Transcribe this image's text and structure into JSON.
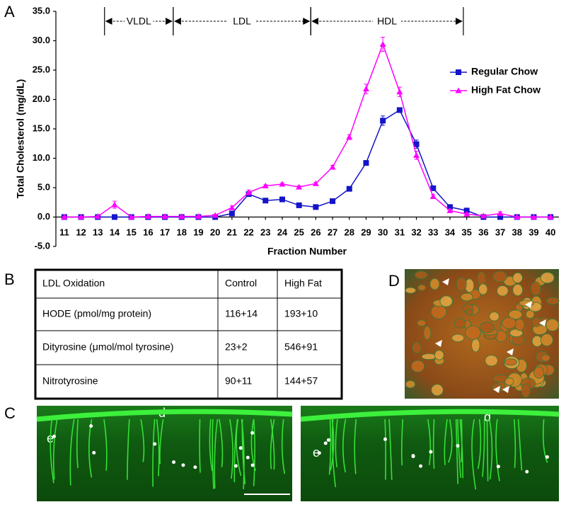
{
  "chart_data": {
    "type": "line",
    "y_label": "Total Cholesterol (mg/dL)",
    "x_label": "Fraction Number",
    "x": [
      11,
      12,
      13,
      14,
      15,
      16,
      17,
      18,
      19,
      20,
      21,
      22,
      23,
      24,
      25,
      26,
      27,
      28,
      29,
      30,
      31,
      32,
      33,
      34,
      35,
      36,
      37,
      38,
      39,
      40
    ],
    "xlim": [
      10.5,
      40.5
    ],
    "xticks": [
      11,
      12,
      13,
      14,
      15,
      16,
      17,
      18,
      19,
      20,
      21,
      22,
      23,
      24,
      25,
      26,
      27,
      28,
      29,
      30,
      31,
      32,
      33,
      34,
      35,
      36,
      37,
      38,
      39,
      40
    ],
    "ylim": [
      -5,
      35
    ],
    "yticks": [
      {
        "value": -5,
        "label": "-5.0"
      },
      {
        "value": 0,
        "label": "0.0"
      },
      {
        "value": 5,
        "label": "5.0"
      },
      {
        "value": 10,
        "label": "10.0"
      },
      {
        "value": 15,
        "label": "15.0"
      },
      {
        "value": 20,
        "label": "20.0"
      },
      {
        "value": 25,
        "label": "25.0"
      },
      {
        "value": 30,
        "label": "30.0"
      },
      {
        "value": 35,
        "label": "35.0"
      }
    ],
    "legend": "upper right",
    "series": [
      {
        "name": "Regular Chow",
        "color": "#1414c8",
        "marker": "square",
        "values": [
          0,
          0,
          0,
          0,
          0,
          0,
          0,
          0,
          0,
          0,
          0.6,
          3.9,
          2.8,
          3.0,
          2.0,
          1.7,
          2.7,
          4.8,
          9.2,
          16.4,
          18.2,
          12.4,
          4.9,
          1.7,
          1.1,
          0,
          0,
          0,
          0,
          0
        ],
        "errors": [
          0.1,
          0.1,
          0.1,
          0.1,
          0.1,
          0.1,
          0.1,
          0.1,
          0.1,
          0.1,
          0.2,
          0.3,
          0.2,
          0.2,
          0.2,
          0.2,
          0.2,
          0.3,
          0.4,
          0.8,
          0.3,
          0.7,
          0.3,
          0.2,
          0.2,
          0.1,
          0.1,
          0.1,
          0.1,
          0.1
        ]
      },
      {
        "name": "High Fat Chow",
        "color": "#ff00ff",
        "marker": "triangle",
        "values": [
          0,
          0,
          0.1,
          2.1,
          0,
          0.1,
          0.1,
          0.1,
          0.1,
          0.3,
          1.6,
          4.2,
          5.3,
          5.6,
          5.1,
          5.7,
          8.5,
          13.6,
          21.8,
          29.4,
          21.3,
          10.5,
          3.5,
          1.1,
          0.5,
          0.2,
          0.6,
          0,
          0,
          0
        ],
        "errors": [
          0.1,
          0.1,
          0.1,
          0.6,
          0.1,
          0.1,
          0.1,
          0.1,
          0.1,
          0.1,
          0.3,
          0.4,
          0.2,
          0.2,
          0.2,
          0.2,
          0.3,
          0.4,
          0.8,
          1.2,
          0.8,
          0.7,
          0.3,
          0.2,
          0.2,
          0.1,
          0.3,
          0.1,
          0.1,
          0.1
        ]
      }
    ],
    "regions": [
      {
        "label": "VLDL",
        "x": [
          13.4,
          17.5
        ]
      },
      {
        "label": "LDL",
        "x": [
          17.5,
          25.7
        ]
      },
      {
        "label": "HDL",
        "x": [
          25.7,
          34.8
        ]
      }
    ]
  },
  "panels": [
    "A",
    "B",
    "C",
    "D"
  ],
  "table": {
    "rows": [
      [
        "LDL Oxidation",
        "Control",
        "High Fat"
      ],
      [
        "HODE (pmol/mg protein)",
        "116+14",
        "193+10"
      ],
      [
        "Dityrosine (μmol/mol tyrosine)",
        "23+2",
        "546+91"
      ],
      [
        "Nitrotyrosine",
        "90+11",
        "144+57"
      ]
    ]
  },
  "panel_c": {
    "left_labels": [
      "d",
      "e"
    ],
    "right_labels": [
      "d",
      "e"
    ]
  }
}
